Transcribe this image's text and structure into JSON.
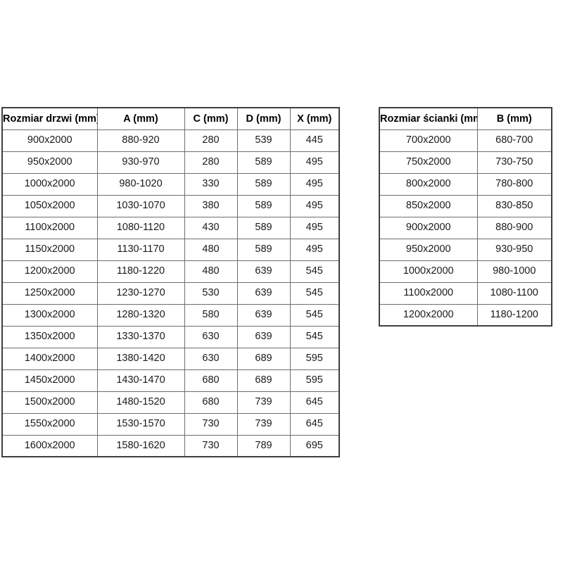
{
  "page": {
    "background": "#ffffff",
    "text_color": "#1a1a1a",
    "border_inner_color": "#6e6e6e",
    "border_outer_color": "#3f3f3f"
  },
  "doors_table": {
    "columns": [
      "Rozmiar drzwi (mm)",
      "A (mm)",
      "C (mm)",
      "D (mm)",
      "X (mm)"
    ],
    "rows": [
      [
        "900x2000",
        "880-920",
        "280",
        "539",
        "445"
      ],
      [
        "950x2000",
        "930-970",
        "280",
        "589",
        "495"
      ],
      [
        "1000x2000",
        "980-1020",
        "330",
        "589",
        "495"
      ],
      [
        "1050x2000",
        "1030-1070",
        "380",
        "589",
        "495"
      ],
      [
        "1100x2000",
        "1080-1120",
        "430",
        "589",
        "495"
      ],
      [
        "1150x2000",
        "1130-1170",
        "480",
        "589",
        "495"
      ],
      [
        "1200x2000",
        "1180-1220",
        "480",
        "639",
        "545"
      ],
      [
        "1250x2000",
        "1230-1270",
        "530",
        "639",
        "545"
      ],
      [
        "1300x2000",
        "1280-1320",
        "580",
        "639",
        "545"
      ],
      [
        "1350x2000",
        "1330-1370",
        "630",
        "639",
        "545"
      ],
      [
        "1400x2000",
        "1380-1420",
        "630",
        "689",
        "595"
      ],
      [
        "1450x2000",
        "1430-1470",
        "680",
        "689",
        "595"
      ],
      [
        "1500x2000",
        "1480-1520",
        "680",
        "739",
        "645"
      ],
      [
        "1550x2000",
        "1530-1570",
        "730",
        "739",
        "645"
      ],
      [
        "1600x2000",
        "1580-1620",
        "730",
        "789",
        "695"
      ]
    ]
  },
  "walls_table": {
    "columns": [
      "Rozmiar ścianki (mm)",
      "B (mm)"
    ],
    "rows": [
      [
        "700x2000",
        "680-700"
      ],
      [
        "750x2000",
        "730-750"
      ],
      [
        "800x2000",
        "780-800"
      ],
      [
        "850x2000",
        "830-850"
      ],
      [
        "900x2000",
        "880-900"
      ],
      [
        "950x2000",
        "930-950"
      ],
      [
        "1000x2000",
        "980-1000"
      ],
      [
        "1100x2000",
        "1080-1100"
      ],
      [
        "1200x2000",
        "1180-1200"
      ]
    ]
  }
}
